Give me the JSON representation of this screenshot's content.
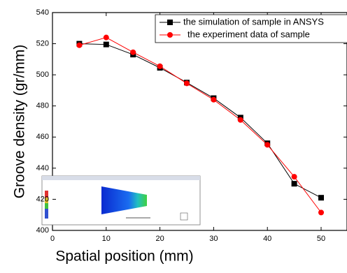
{
  "chart_data": {
    "type": "line",
    "x_label": "Spatial position (mm)",
    "y_label": "Groove density (gr/mm)",
    "x": [
      5,
      10,
      15,
      20,
      25,
      30,
      35,
      40,
      45,
      50
    ],
    "series": [
      {
        "name": "the simulation of sample in ANSYS",
        "color": "#000000",
        "marker": "square",
        "values": [
          520,
          519.5,
          513,
          504.5,
          495,
          485,
          472.5,
          456,
          430,
          421
        ]
      },
      {
        "name": "the experiment data of sample",
        "color": "#ff0000",
        "marker": "circle",
        "values": [
          519,
          524,
          514.5,
          505.5,
          494.5,
          484,
          471,
          455,
          434.5,
          411.5
        ]
      }
    ],
    "xlim": [
      0,
      54.5
    ],
    "ylim": [
      400,
      540
    ],
    "xticks": [
      0,
      10,
      20,
      30,
      40,
      50
    ],
    "yticks": [
      400,
      420,
      440,
      460,
      480,
      500,
      520,
      540
    ],
    "legend": "top-right"
  }
}
